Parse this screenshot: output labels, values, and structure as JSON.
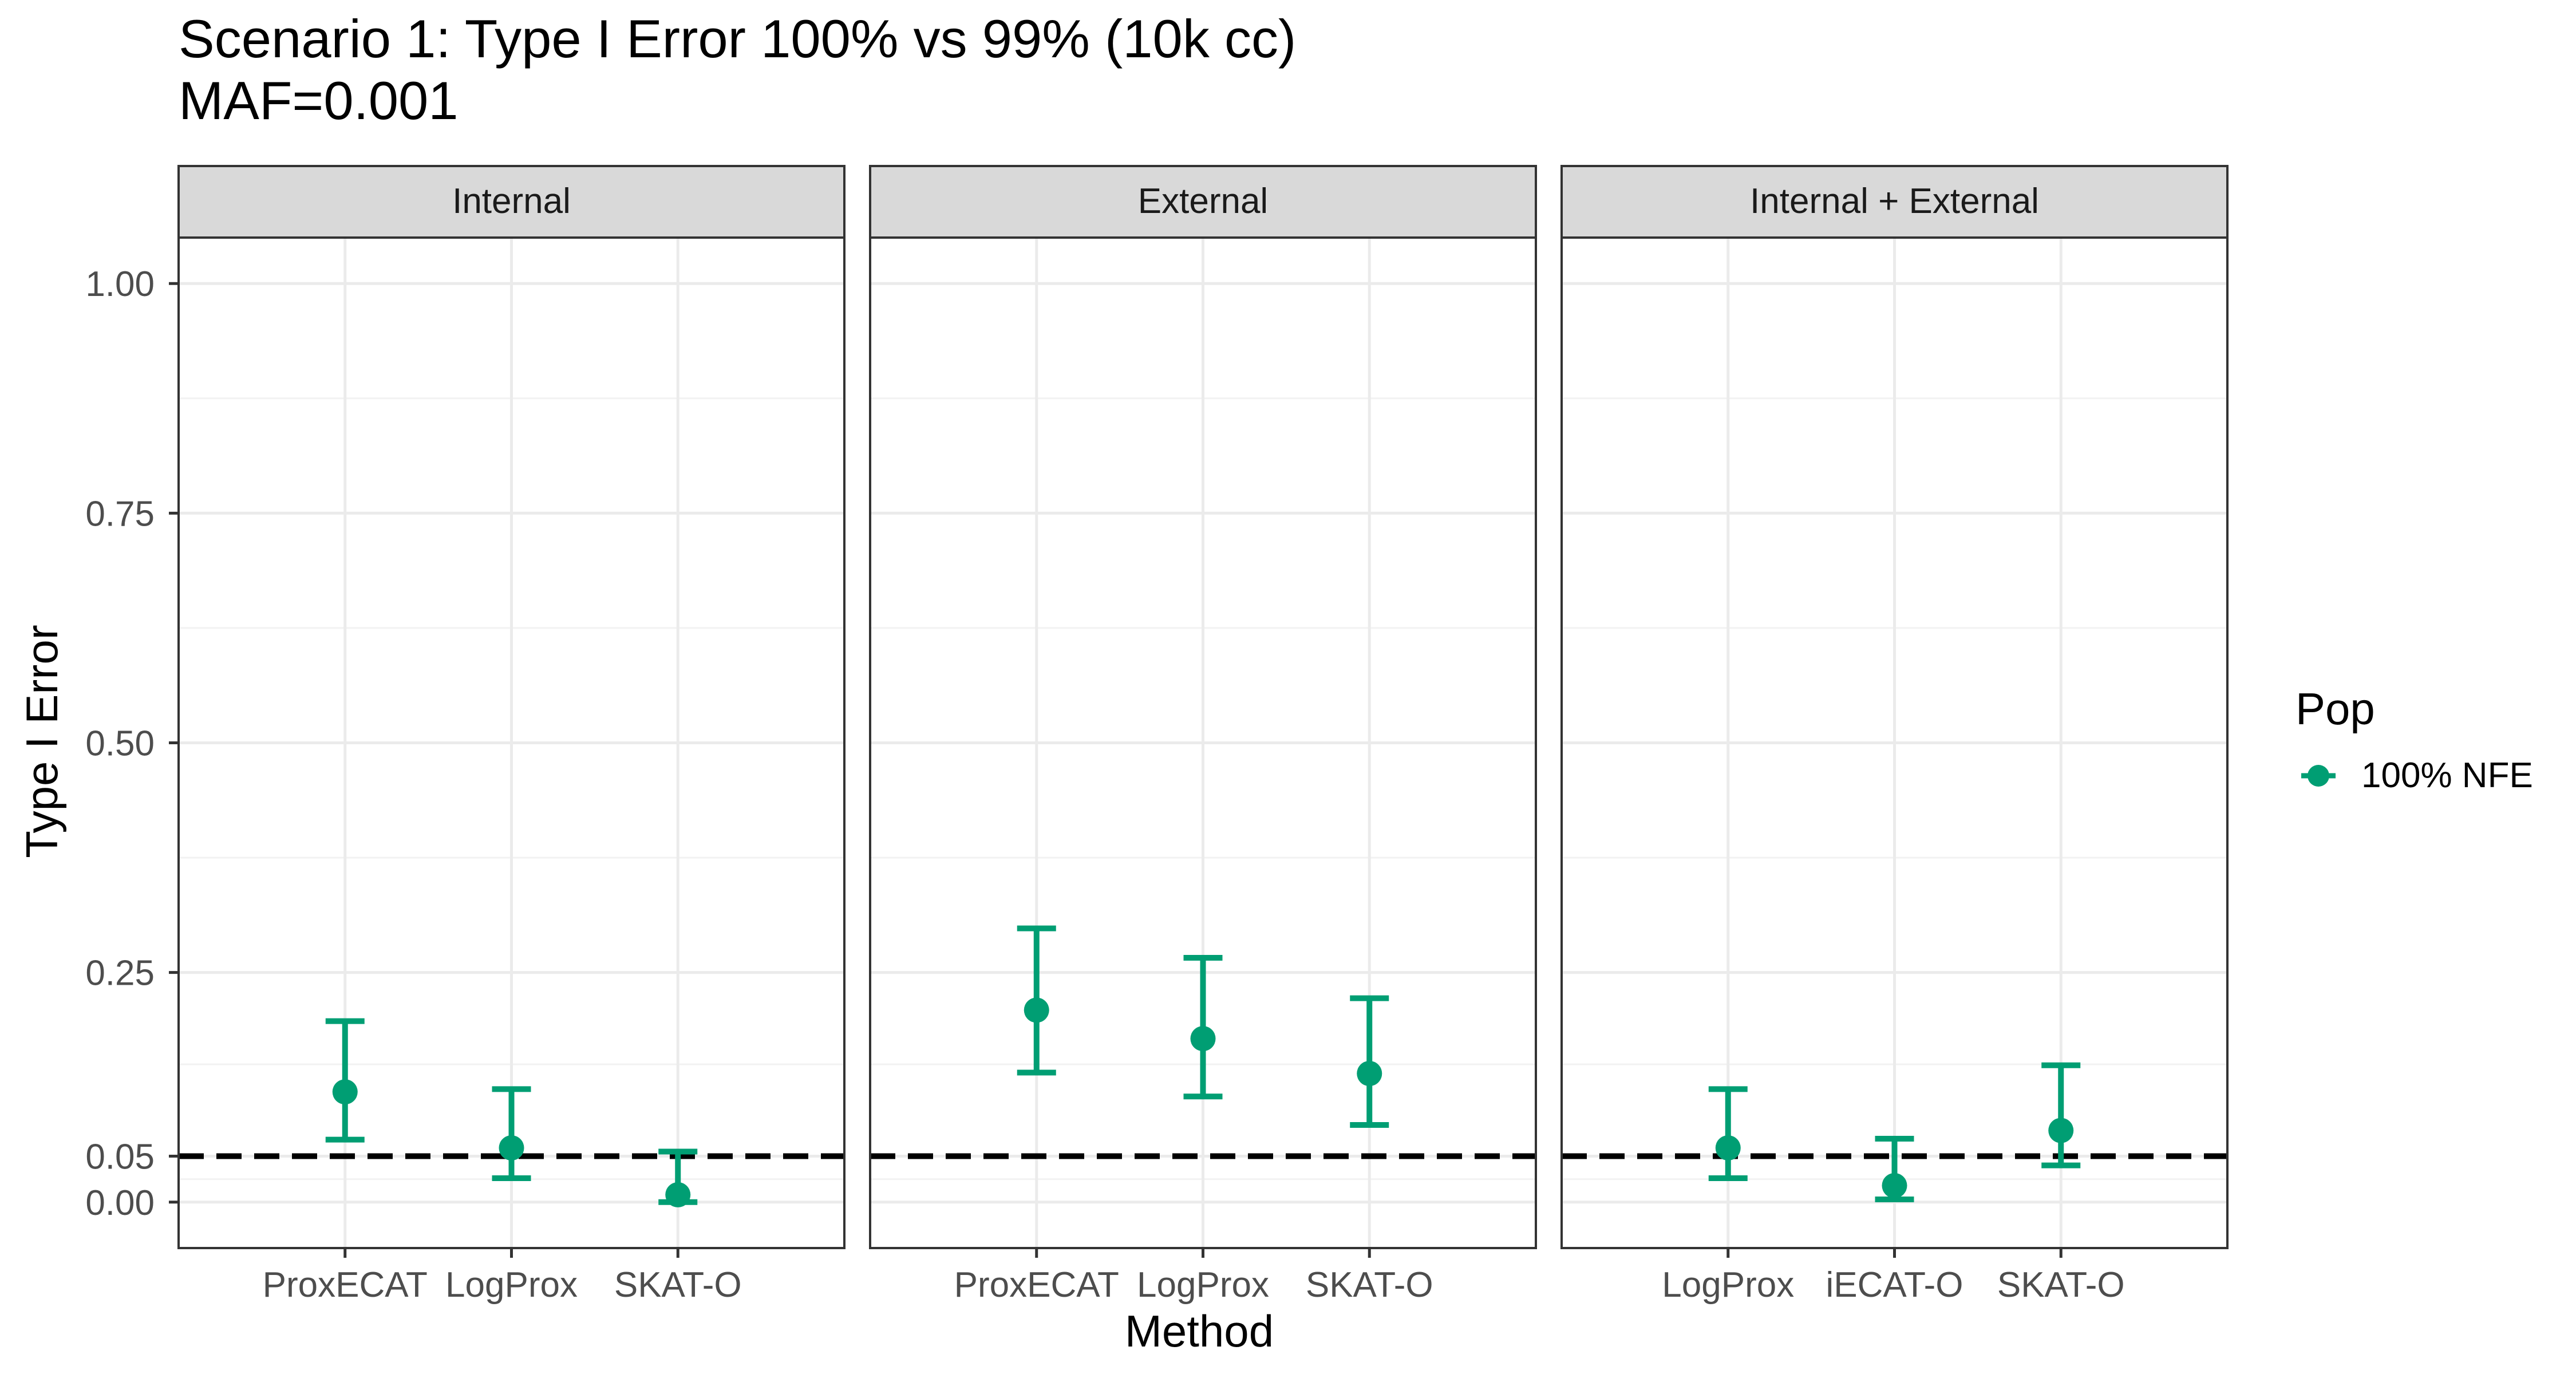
{
  "chart_data": {
    "type": "scatter",
    "title": "Scenario 1: Type I Error 100% vs 99% (10k cc)",
    "subtitle": "MAF=0.001",
    "xlabel": "Method",
    "ylabel": "Type I Error",
    "ylim": [
      -0.05,
      1.05
    ],
    "y_ticks": [
      0.0,
      0.05,
      0.25,
      0.5,
      0.75,
      1.0
    ],
    "y_tick_labels": [
      "0.00",
      "0.05",
      "0.25",
      "0.50",
      "0.75",
      "1.00"
    ],
    "reference_line": {
      "y": 0.05,
      "style": "dashed",
      "color": "#000000"
    },
    "grid": true,
    "legend": {
      "title": "Pop",
      "placement": "right",
      "entries": [
        {
          "label": "100% NFE",
          "color": "#009E73"
        }
      ]
    },
    "facets": [
      {
        "label": "Internal",
        "categories": [
          "ProxECAT",
          "LogProx",
          "SKAT-O"
        ],
        "points": [
          {
            "method": "ProxECAT",
            "y": 0.12,
            "ymin": 0.068,
            "ymax": 0.197
          },
          {
            "method": "LogProx",
            "y": 0.059,
            "ymin": 0.026,
            "ymax": 0.123
          },
          {
            "method": "SKAT-O",
            "y": 0.008,
            "ymin": 0.0,
            "ymax": 0.055
          }
        ]
      },
      {
        "label": "External",
        "categories": [
          "ProxECAT",
          "LogProx",
          "SKAT-O"
        ],
        "points": [
          {
            "method": "ProxECAT",
            "y": 0.209,
            "ymin": 0.141,
            "ymax": 0.298
          },
          {
            "method": "LogProx",
            "y": 0.178,
            "ymin": 0.115,
            "ymax": 0.266
          },
          {
            "method": "SKAT-O",
            "y": 0.14,
            "ymin": 0.084,
            "ymax": 0.222
          }
        ]
      },
      {
        "label": "Internal + External",
        "categories": [
          "LogProx",
          "iECAT-O",
          "SKAT-O"
        ],
        "points": [
          {
            "method": "LogProx",
            "y": 0.059,
            "ymin": 0.026,
            "ymax": 0.123
          },
          {
            "method": "iECAT-O",
            "y": 0.018,
            "ymin": 0.003,
            "ymax": 0.069
          },
          {
            "method": "SKAT-O",
            "y": 0.078,
            "ymin": 0.04,
            "ymax": 0.149
          }
        ]
      }
    ]
  }
}
